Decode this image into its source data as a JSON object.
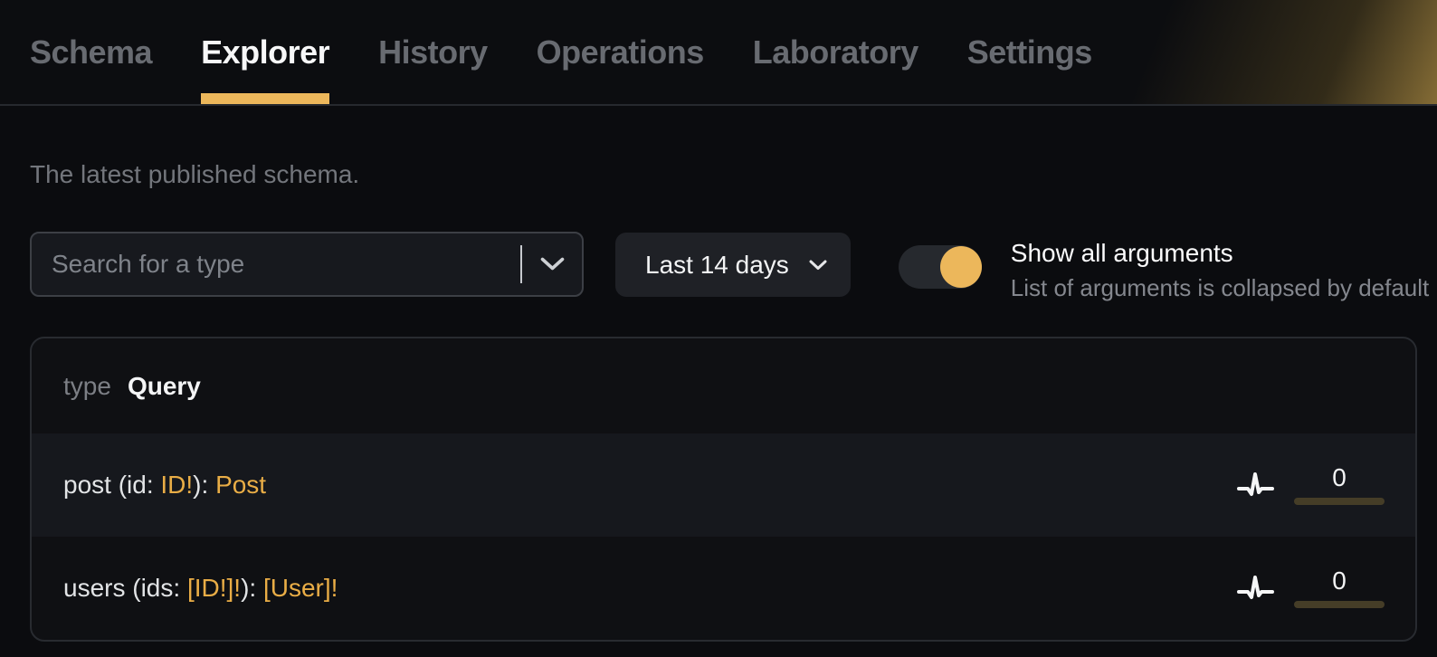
{
  "colors": {
    "accent": "#ecb75b",
    "code_type": "#e9ad46",
    "count_bar": "#453d27",
    "page_bg": "#0b0c0f"
  },
  "nav": {
    "tabs": [
      {
        "label": "Schema",
        "active": false
      },
      {
        "label": "Explorer",
        "active": true
      },
      {
        "label": "History",
        "active": false
      },
      {
        "label": "Operations",
        "active": false
      },
      {
        "label": "Laboratory",
        "active": false
      },
      {
        "label": "Settings",
        "active": false
      }
    ]
  },
  "page": {
    "subtitle": "The latest published schema."
  },
  "controls": {
    "search": {
      "placeholder": "Search for a type",
      "value": ""
    },
    "period": {
      "label": "Last 14 days"
    },
    "arguments_toggle": {
      "state": "on",
      "title": "Show all arguments",
      "description": "List of arguments is collapsed by default"
    }
  },
  "schema_card": {
    "kind_label": "type",
    "type_name": "Query",
    "fields": [
      {
        "segments": [
          {
            "text": "post (id: "
          },
          {
            "text": "ID!"
          },
          {
            "text": "): "
          },
          {
            "text": "Post"
          }
        ],
        "usage_count": "0"
      },
      {
        "segments": [
          {
            "text": "users (ids: "
          },
          {
            "text": "[ID!]!"
          },
          {
            "text": "): "
          },
          {
            "text": "[User]!"
          }
        ],
        "usage_count": "0"
      }
    ]
  }
}
